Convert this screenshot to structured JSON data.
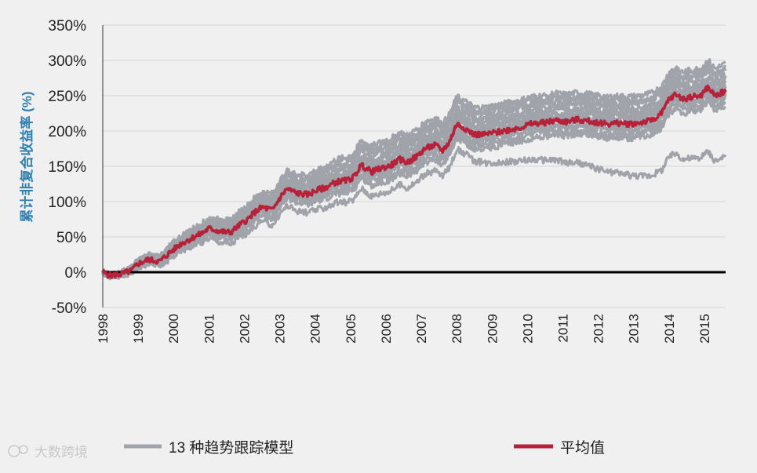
{
  "chart_data": {
    "type": "line",
    "title": "",
    "xlabel": "",
    "ylabel": "累计非复合收益率 (%)",
    "ylim": [
      -50,
      350
    ],
    "xlim": [
      1998.0,
      2015.6
    ],
    "y_ticks": [
      -50,
      0,
      50,
      100,
      150,
      200,
      250,
      300,
      350
    ],
    "y_tick_labels": [
      "-50%",
      "0%",
      "50%",
      "100%",
      "150%",
      "200%",
      "250%",
      "300%",
      "350%"
    ],
    "x_ticks": [
      1998,
      1999,
      2000,
      2001,
      2002,
      2003,
      2004,
      2005,
      2006,
      2007,
      2008,
      2009,
      2010,
      2011,
      2012,
      2013,
      2014,
      2015
    ],
    "x_tick_labels": [
      "1998",
      "1999",
      "2000",
      "2001",
      "2002",
      "2003",
      "2004",
      "2005",
      "2006",
      "2007",
      "2008",
      "2009",
      "2010",
      "2011",
      "2012",
      "2013",
      "2014",
      "2015"
    ],
    "grid": true,
    "legend_position": "bottom",
    "series": [
      {
        "name": "平均值",
        "color": "#b5223a",
        "x": [
          1998.0,
          1998.2,
          1998.5,
          1998.8,
          1999.0,
          1999.3,
          1999.6,
          1999.9,
          2000.2,
          2000.5,
          2000.8,
          2001.0,
          2001.3,
          2001.6,
          2001.9,
          2002.1,
          2002.3,
          2002.5,
          2002.8,
          2003.0,
          2003.2,
          2003.5,
          2003.8,
          2004.0,
          2004.3,
          2004.6,
          2004.9,
          2005.1,
          2005.3,
          2005.6,
          2005.9,
          2006.1,
          2006.4,
          2006.6,
          2006.9,
          2007.1,
          2007.4,
          2007.6,
          2007.8,
          2008.0,
          2008.2,
          2008.5,
          2008.8,
          2009.1,
          2009.5,
          2009.8,
          2010.1,
          2010.5,
          2010.8,
          2011.1,
          2011.4,
          2011.7,
          2012.0,
          2012.3,
          2012.6,
          2012.9,
          2013.2,
          2013.5,
          2013.8,
          2014.0,
          2014.2,
          2014.4,
          2014.6,
          2014.9,
          2015.1,
          2015.3,
          2015.6
        ],
        "values": [
          0,
          -5,
          -3,
          2,
          12,
          18,
          15,
          28,
          40,
          48,
          55,
          62,
          58,
          56,
          68,
          75,
          85,
          92,
          88,
          105,
          118,
          112,
          110,
          115,
          120,
          128,
          130,
          135,
          152,
          142,
          148,
          150,
          160,
          155,
          165,
          175,
          180,
          172,
          185,
          210,
          205,
          195,
          195,
          198,
          202,
          205,
          210,
          212,
          215,
          213,
          216,
          214,
          212,
          210,
          211,
          210,
          212,
          215,
          225,
          245,
          252,
          245,
          248,
          250,
          262,
          250,
          257
        ]
      },
      {
        "name": "13 种趋势跟踪模型",
        "color": "#a0a3a9",
        "offsets": [
          12,
          8,
          4,
          -4,
          -8,
          -14,
          -20,
          16,
          22,
          28,
          32,
          38,
          -36
        ]
      }
    ]
  },
  "legend": {
    "items": [
      {
        "label": "13 种趋势跟踪模型",
        "color": "#a0a3a9"
      },
      {
        "label": "平均值",
        "color": "#b5223a"
      }
    ]
  },
  "watermark": {
    "text": "大数跨境"
  }
}
